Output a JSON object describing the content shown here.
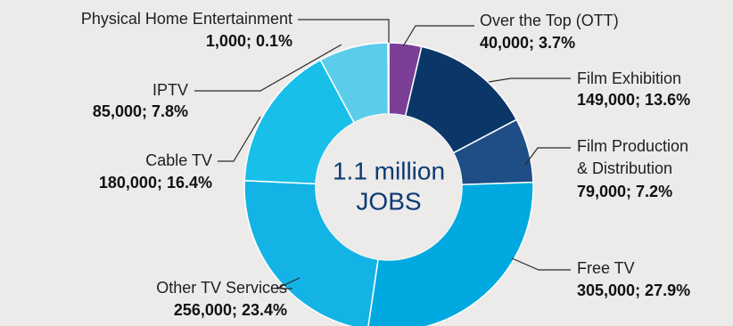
{
  "chart_data": {
    "type": "pie",
    "variant": "donut",
    "center_text": [
      "1.1 million",
      "JOBS"
    ],
    "slices": [
      {
        "name": "Over the Top (OTT)",
        "value": 40000,
        "percent": 3.7,
        "value_label": "40,000; 3.7%",
        "color": "#7b3f98"
      },
      {
        "name": "Film Exhibition",
        "value": 149000,
        "percent": 13.6,
        "value_label": "149,000; 13.6%",
        "color": "#0b3668"
      },
      {
        "name": "Film Production & Distribution",
        "value": 79000,
        "percent": 7.2,
        "value_label": "79,000; 7.2%",
        "color": "#1f4e86"
      },
      {
        "name": "Free TV",
        "value": 305000,
        "percent": 27.9,
        "value_label": "305,000; 27.9%",
        "color": "#00a9df"
      },
      {
        "name": "Other TV Services",
        "value": 256000,
        "percent": 23.4,
        "value_label": "256,000; 23.4%",
        "color": "#14b3e6"
      },
      {
        "name": "Cable TV",
        "value": 180000,
        "percent": 16.4,
        "value_label": "180,000; 16.4%",
        "color": "#17bfe9"
      },
      {
        "name": "IPTV",
        "value": 85000,
        "percent": 7.8,
        "value_label": "85,000; 7.8%",
        "color": "#5ccceb"
      },
      {
        "name": "Physical Home Entertainment",
        "value": 1000,
        "percent": 0.1,
        "value_label": "1,000; 0.1%",
        "color": "#9a5a2b"
      }
    ]
  }
}
